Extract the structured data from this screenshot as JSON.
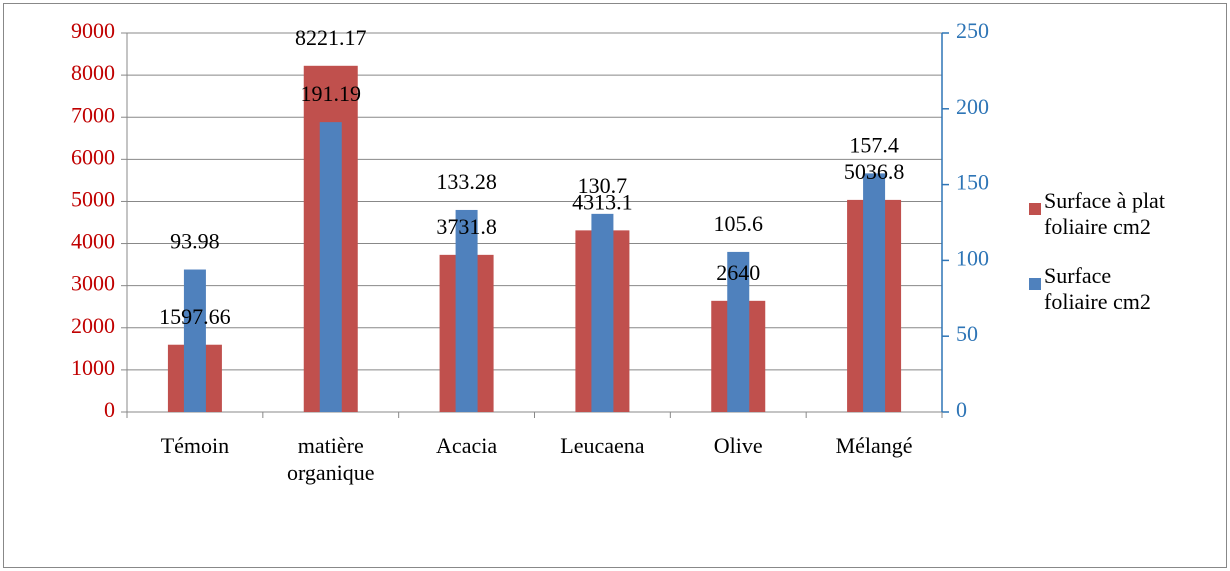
{
  "chart_data": {
    "type": "bar",
    "categories": [
      "Témoin",
      "matière organique",
      "Acacia",
      "Leucaena",
      "Olive",
      "Mélangé"
    ],
    "series": [
      {
        "name": "Surface à plat foliaire cm2",
        "color": "#c0504d",
        "values": [
          1597.66,
          8221.17,
          3731.8,
          4313.1,
          2640,
          5036.8
        ]
      },
      {
        "name": "Surface foliaire cm2",
        "color": "#4f81bd",
        "axis": "y2",
        "values": [
          93.98,
          191.19,
          133.28,
          130.7,
          105.6,
          157.4
        ]
      }
    ],
    "ylim": [
      0,
      9000
    ],
    "yticks": [
      0,
      1000,
      2000,
      3000,
      4000,
      5000,
      6000,
      7000,
      8000,
      9000
    ],
    "ytick_color": "#c00000",
    "y2lim": [
      0,
      250
    ],
    "y2ticks": [
      0,
      50,
      100,
      150,
      200,
      250
    ],
    "y2tick_color": "#2e75b6",
    "grid": true,
    "legend": "right"
  }
}
